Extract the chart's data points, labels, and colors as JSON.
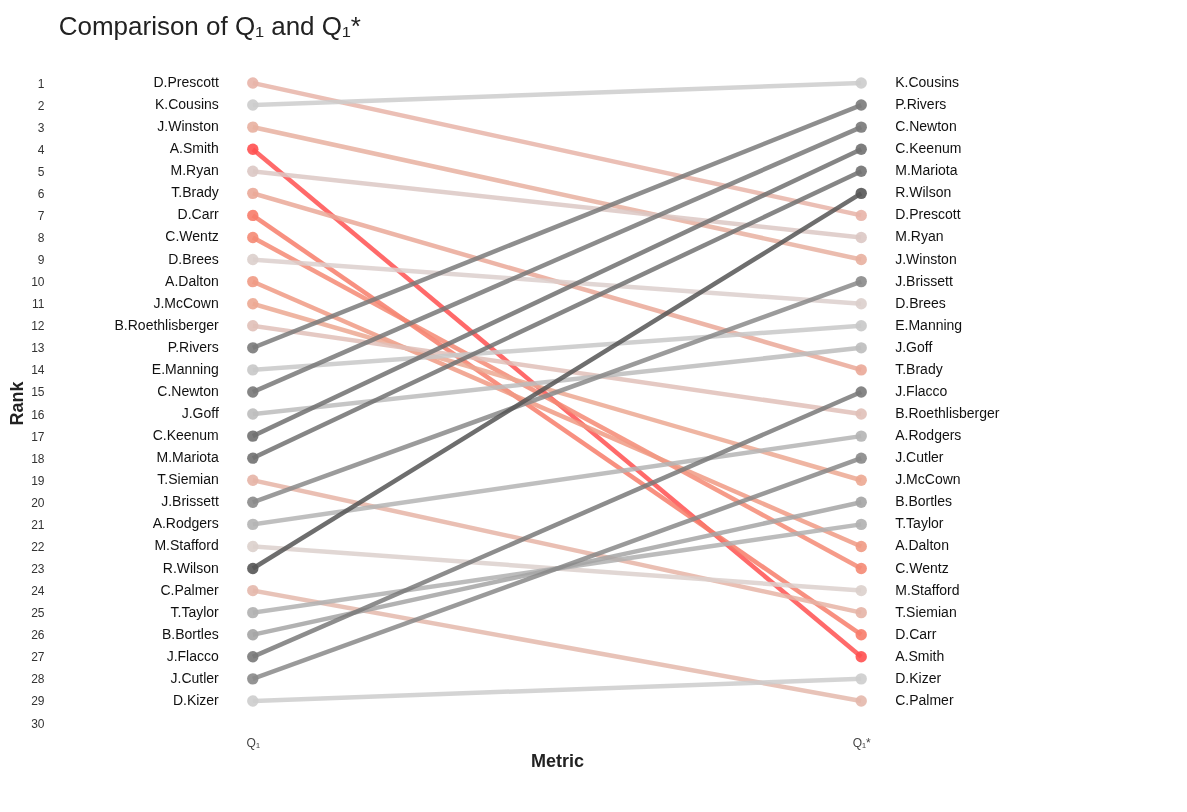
{
  "chart_data": {
    "type": "line",
    "title": "Comparison of Q₁ and Q₁*",
    "xlabel": "Metric",
    "ylabel": "Rank",
    "categories": [
      "Q₁",
      "Q₁*"
    ],
    "ylim": [
      30,
      1
    ],
    "yticks": [
      1,
      2,
      3,
      4,
      5,
      6,
      7,
      8,
      9,
      10,
      11,
      12,
      13,
      14,
      15,
      16,
      17,
      18,
      19,
      20,
      21,
      22,
      23,
      24,
      25,
      26,
      27,
      28,
      29,
      30
    ],
    "grid": false,
    "legend": false,
    "marker": "circle",
    "line_style": "solid",
    "series": [
      {
        "name": "D.Prescott",
        "color": "#e8b4a8",
        "values": [
          1,
          7
        ]
      },
      {
        "name": "K.Cousins",
        "color": "#cccccc",
        "values": [
          2,
          1
        ]
      },
      {
        "name": "J.Winston",
        "color": "#e8b0a0",
        "values": [
          3,
          9
        ]
      },
      {
        "name": "A.Smith",
        "color": "#ff5050",
        "values": [
          4,
          27
        ]
      },
      {
        "name": "M.Ryan",
        "color": "#dcc8c4",
        "values": [
          5,
          8
        ]
      },
      {
        "name": "T.Brady",
        "color": "#eaa898",
        "values": [
          6,
          14
        ]
      },
      {
        "name": "D.Carr",
        "color": "#f77c6a",
        "values": [
          7,
          26
        ]
      },
      {
        "name": "C.Wentz",
        "color": "#f48a74",
        "values": [
          8,
          23
        ]
      },
      {
        "name": "D.Brees",
        "color": "#dccfcc",
        "values": [
          9,
          11
        ]
      },
      {
        "name": "A.Dalton",
        "color": "#f09a84",
        "values": [
          10,
          22
        ]
      },
      {
        "name": "J.McCown",
        "color": "#eca892",
        "values": [
          11,
          19
        ]
      },
      {
        "name": "B.Roethlisberger",
        "color": "#e0c0b8",
        "values": [
          12,
          16
        ]
      },
      {
        "name": "P.Rivers",
        "color": "#7a7a7a",
        "values": [
          13,
          2
        ]
      },
      {
        "name": "E.Manning",
        "color": "#c8c8c8",
        "values": [
          14,
          12
        ]
      },
      {
        "name": "C.Newton",
        "color": "#787878",
        "values": [
          15,
          3
        ]
      },
      {
        "name": "J.Goff",
        "color": "#bcbcbc",
        "values": [
          16,
          13
        ]
      },
      {
        "name": "C.Keenum",
        "color": "#707070",
        "values": [
          17,
          4
        ]
      },
      {
        "name": "M.Mariota",
        "color": "#717171",
        "values": [
          18,
          5
        ]
      },
      {
        "name": "T.Siemian",
        "color": "#e6b4a6",
        "values": [
          19,
          25
        ]
      },
      {
        "name": "J.Brissett",
        "color": "#8a8a8a",
        "values": [
          20,
          10
        ]
      },
      {
        "name": "A.Rodgers",
        "color": "#b4b4b4",
        "values": [
          21,
          17
        ]
      },
      {
        "name": "M.Stafford",
        "color": "#dcd0cc",
        "values": [
          22,
          24
        ]
      },
      {
        "name": "R.Wilson",
        "color": "#555555",
        "values": [
          23,
          6
        ]
      },
      {
        "name": "C.Palmer",
        "color": "#e4b8ac",
        "values": [
          24,
          29
        ]
      },
      {
        "name": "T.Taylor",
        "color": "#b0b0b0",
        "values": [
          25,
          21
        ]
      },
      {
        "name": "B.Bortles",
        "color": "#a4a4a4",
        "values": [
          26,
          20
        ]
      },
      {
        "name": "J.Flacco",
        "color": "#797979",
        "values": [
          27,
          15
        ]
      },
      {
        "name": "J.Cutler",
        "color": "#888888",
        "values": [
          28,
          18
        ]
      },
      {
        "name": "D.Kizer",
        "color": "#cdcdcd",
        "values": [
          29,
          28
        ]
      }
    ]
  }
}
